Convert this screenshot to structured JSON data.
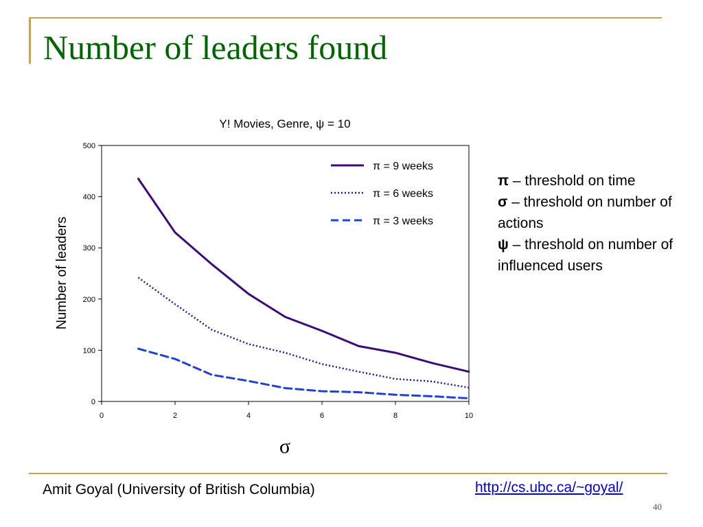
{
  "slide": {
    "title": "Number of leaders found",
    "footer_author": "Amit Goyal (University of British Columbia)",
    "footer_link": "http://cs.ubc.ca/~goyal/",
    "page_number": "40",
    "accent_color": "#c8a44a",
    "title_color": "#006600"
  },
  "notes": [
    {
      "symbol": "π",
      "text": " – threshold on time"
    },
    {
      "symbol": "σ",
      "text": " – threshold on number of actions"
    },
    {
      "symbol": "ψ",
      "text": " – threshold on number of influenced users"
    }
  ],
  "chart_data": {
    "type": "line",
    "title": "Y! Movies, Genre, ψ = 10",
    "xlabel": "σ",
    "ylabel": "Number of leaders",
    "xlim": [
      0,
      10
    ],
    "ylim": [
      0,
      500
    ],
    "xticks": [
      0,
      2,
      4,
      6,
      8,
      10
    ],
    "yticks": [
      0,
      100,
      200,
      300,
      400,
      500
    ],
    "grid": false,
    "legend_position": "top-right",
    "x": [
      1,
      2,
      3,
      4,
      5,
      6,
      7,
      8,
      9,
      10
    ],
    "series": [
      {
        "name": "π = 9 weeks",
        "color": "#3b0a78",
        "style": "solid",
        "values": [
          435,
          330,
          268,
          210,
          165,
          138,
          108,
          95,
          75,
          58
        ]
      },
      {
        "name": "π = 6 weeks",
        "color": "#1a1a8c",
        "style": "dotted",
        "values": [
          242,
          190,
          140,
          112,
          95,
          73,
          58,
          44,
          39,
          27
        ]
      },
      {
        "name": "π = 3 weeks",
        "color": "#1f3fd6",
        "style": "dashed",
        "values": [
          103,
          83,
          52,
          40,
          26,
          20,
          18,
          13,
          10,
          6
        ]
      }
    ]
  }
}
